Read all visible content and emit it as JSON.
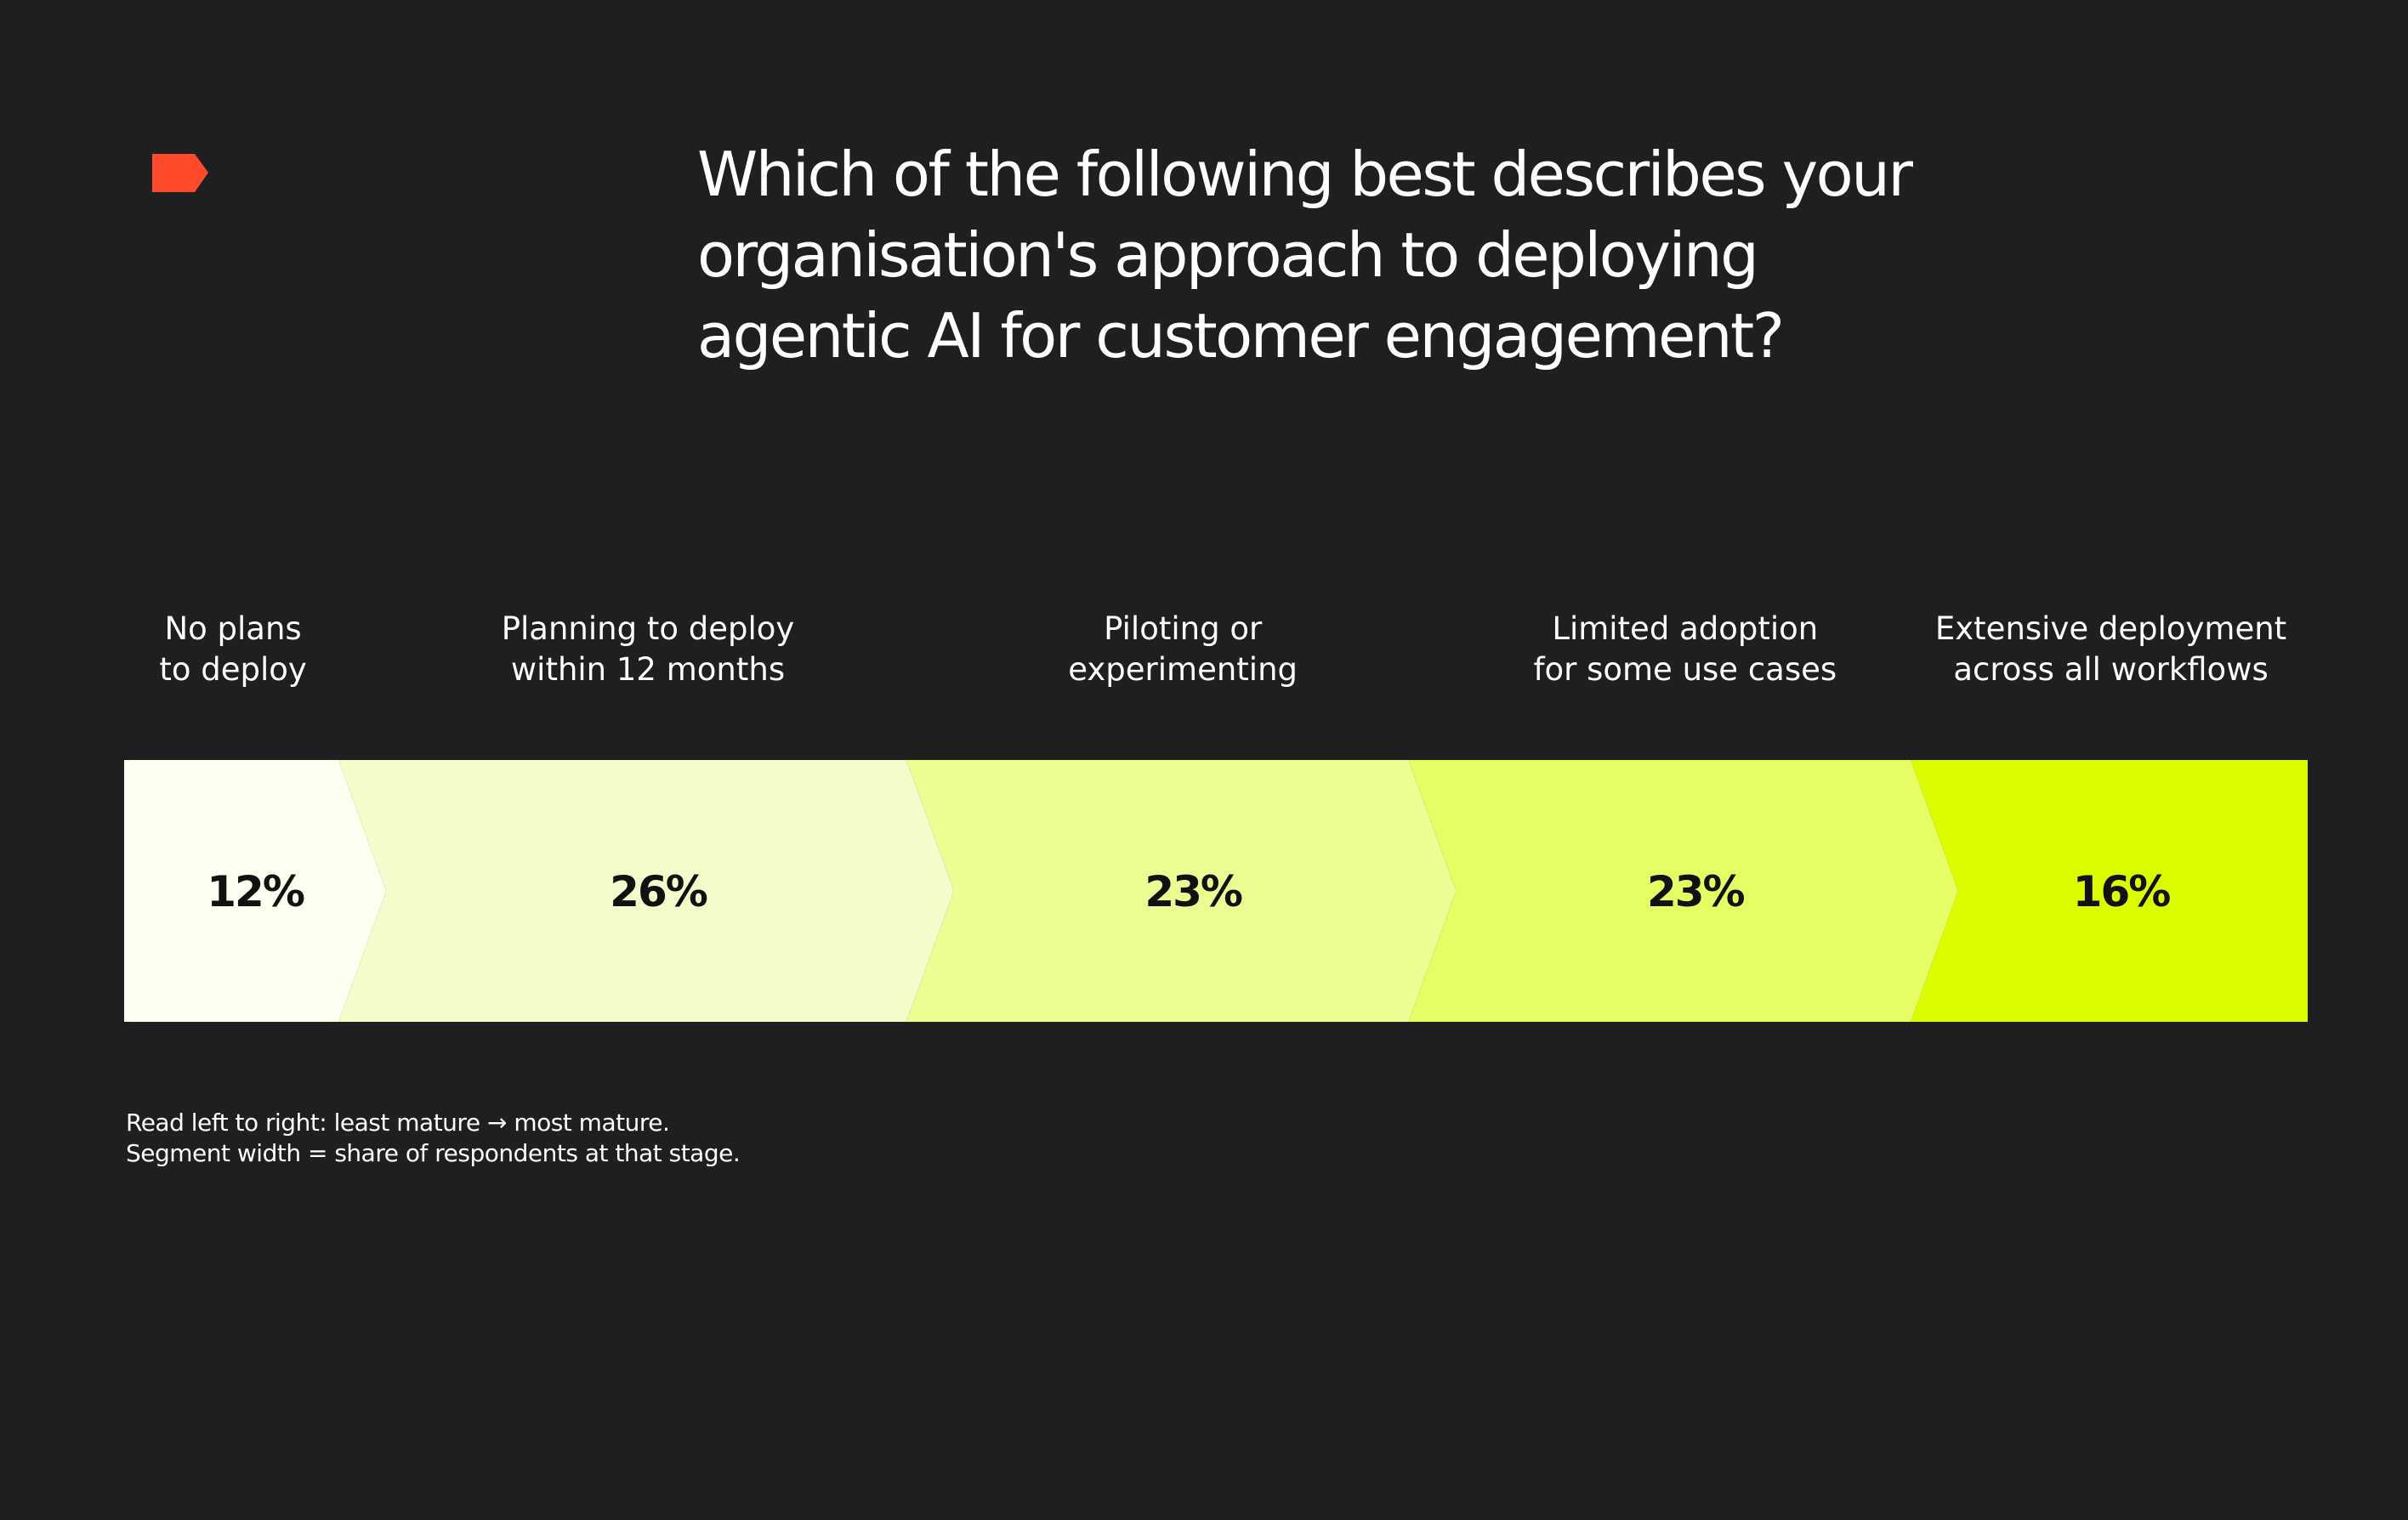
{
  "brand": {
    "logo_icon": "flag-logo-icon",
    "logo_color": "#ff4a2b"
  },
  "chart_data": {
    "type": "bar",
    "orientation": "horizontal-stacked-funnel",
    "title": "Which of the following best describes your organisation's approach to deploying agentic AI for customer engagement?",
    "title_lines": [
      "Which of the following best describes your",
      "organisation's approach to deploying",
      "agentic AI for customer engagement?"
    ],
    "unit": "%",
    "xlim": [
      0,
      100
    ],
    "grid": false,
    "legend": "none",
    "categories": [
      "No plans to deploy",
      "Planning to deploy within 12 months",
      "Piloting or experimenting",
      "Limited adoption for some use cases",
      "Extensive deployment across all workflows"
    ],
    "category_lines": [
      [
        "No plans",
        "to deploy"
      ],
      [
        "Planning to deploy",
        "within 12 months"
      ],
      [
        "Piloting or",
        "experimenting"
      ],
      [
        "Limited adoption",
        "for some use cases"
      ],
      [
        "Extensive deployment",
        "across all workflows"
      ]
    ],
    "values": [
      12,
      26,
      23,
      23,
      16
    ],
    "value_labels": [
      "12%",
      "26%",
      "23%",
      "23%",
      "16%"
    ],
    "colors": [
      "#fdffef",
      "#f5fccb",
      "#edfd93",
      "#e6fd63",
      "#dcfd00"
    ]
  },
  "notes": {
    "line1": "Read left to right: least mature → most mature.",
    "line2": "Segment width = share of respondents at that stage."
  }
}
